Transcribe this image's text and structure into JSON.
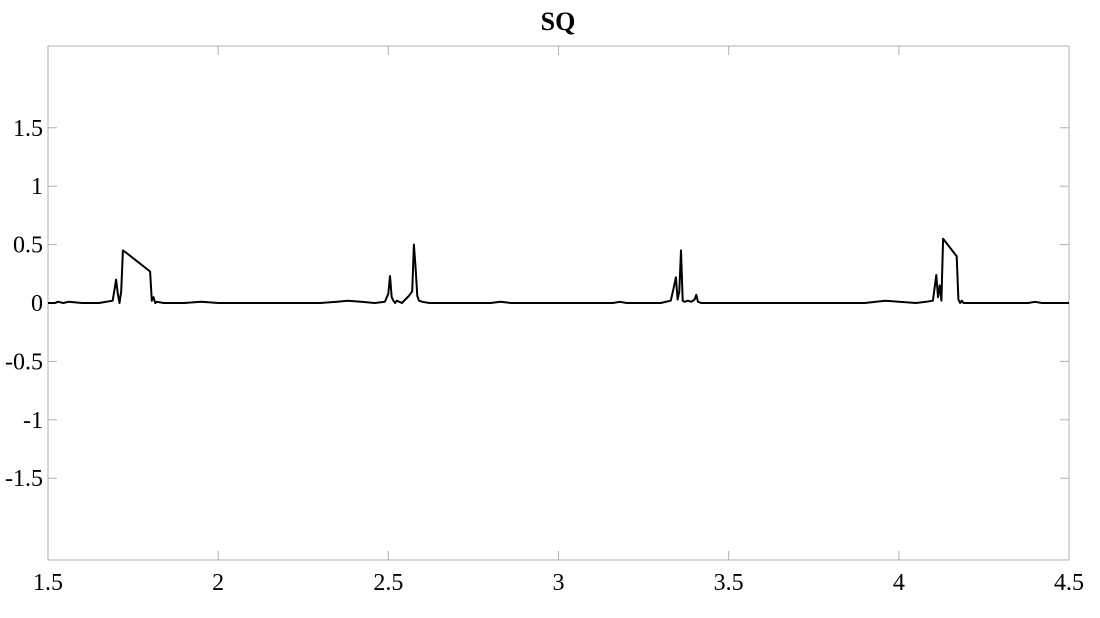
{
  "chart_data": {
    "type": "line",
    "title": "SQ",
    "xlabel": "",
    "ylabel": "",
    "xlim": [
      1.5,
      4.5
    ],
    "ylim": [
      -2.2,
      2.2
    ],
    "grid": false,
    "x_ticks": [
      1.5,
      2,
      2.5,
      3,
      3.5,
      4,
      4.5
    ],
    "x_tick_labels": [
      "1.5",
      "2",
      "2.5",
      "3",
      "3.5",
      "4",
      "4.5"
    ],
    "y_ticks": [
      1.5,
      1,
      0.5,
      0,
      -0.5,
      -1,
      -1.5
    ],
    "y_tick_labels": [
      "1.5",
      "1",
      "0.5",
      "0",
      "-0.5",
      "-1",
      "-1.5"
    ],
    "line_color": "#000000",
    "series": [
      {
        "x": [
          1.5,
          1.52,
          1.53,
          1.545,
          1.56,
          1.6,
          1.65,
          1.69,
          1.7,
          1.705,
          1.71,
          1.715,
          1.72,
          1.73,
          1.8,
          1.805,
          1.81,
          1.815,
          1.82,
          1.84,
          1.9,
          1.95,
          2.0,
          2.1,
          2.2,
          2.3,
          2.35,
          2.38,
          2.42,
          2.46,
          2.49,
          2.5,
          2.505,
          2.51,
          2.515,
          2.52,
          2.525,
          2.54,
          2.56,
          2.57,
          2.575,
          2.58,
          2.585,
          2.59,
          2.6,
          2.62,
          2.65,
          2.8,
          2.83,
          2.86,
          3.0,
          3.16,
          3.18,
          3.2,
          3.3,
          3.33,
          3.34,
          3.345,
          3.35,
          3.355,
          3.36,
          3.365,
          3.37,
          3.38,
          3.39,
          3.4,
          3.405,
          3.41,
          3.42,
          3.5,
          3.6,
          3.9,
          3.96,
          4.0,
          4.05,
          4.08,
          4.1,
          4.11,
          4.115,
          4.12,
          4.125,
          4.13,
          4.17,
          4.175,
          4.18,
          4.185,
          4.19,
          4.2,
          4.3,
          4.38,
          4.4,
          4.42,
          4.5
        ],
        "y": [
          0.0,
          0.0,
          0.01,
          0.0,
          0.01,
          0.0,
          0.0,
          0.02,
          0.2,
          0.08,
          0.0,
          0.1,
          0.45,
          0.43,
          0.27,
          0.02,
          0.05,
          0.0,
          0.01,
          0.0,
          0.0,
          0.01,
          0.0,
          0.0,
          0.0,
          0.0,
          0.01,
          0.02,
          0.01,
          0.0,
          0.01,
          0.08,
          0.23,
          0.05,
          0.02,
          0.0,
          0.02,
          0.0,
          0.06,
          0.1,
          0.5,
          0.3,
          0.06,
          0.02,
          0.01,
          0.0,
          0.0,
          0.0,
          0.01,
          0.0,
          0.0,
          0.0,
          0.01,
          0.0,
          0.0,
          0.02,
          0.15,
          0.22,
          0.03,
          0.1,
          0.45,
          0.02,
          0.01,
          0.02,
          0.01,
          0.03,
          0.07,
          0.01,
          0.0,
          0.0,
          0.0,
          0.0,
          0.02,
          0.01,
          0.0,
          0.01,
          0.02,
          0.24,
          0.05,
          0.15,
          0.02,
          0.55,
          0.4,
          0.03,
          0.0,
          0.02,
          0.0,
          0.0,
          0.0,
          0.0,
          0.01,
          0.0,
          0.0
        ]
      }
    ]
  }
}
